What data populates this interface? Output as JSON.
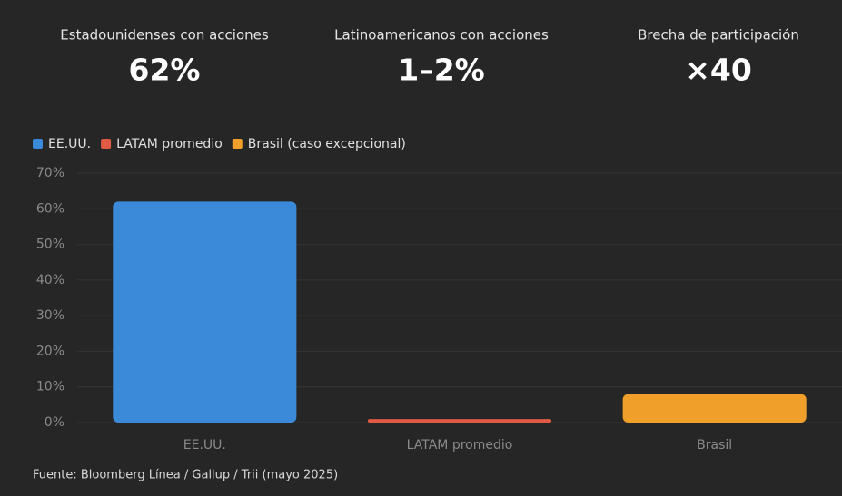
{
  "stats": [
    {
      "label": "Estadounidenses con acciones",
      "value": "62%"
    },
    {
      "label": "Latinoamericanos con acciones",
      "value": "1–2%"
    },
    {
      "label": "Brecha de participación",
      "value": "×40"
    }
  ],
  "chart_data": {
    "type": "bar",
    "categories": [
      "EE.UU.",
      "LATAM promedio",
      "Brasil"
    ],
    "series": [
      {
        "name": "EE.UU.",
        "color": "#3b8ad9",
        "values": [
          62,
          null,
          null
        ]
      },
      {
        "name": "LATAM promedio",
        "color": "#e05a44",
        "values": [
          null,
          1,
          null
        ]
      },
      {
        "name": "Brasil (caso excepcional)",
        "color": "#f0a02a",
        "values": [
          null,
          null,
          8
        ]
      }
    ],
    "ylim": [
      0,
      70
    ],
    "yticks": [
      {
        "value": 0,
        "label": "0%"
      },
      {
        "value": 10,
        "label": "10%"
      },
      {
        "value": 20,
        "label": "20%"
      },
      {
        "value": 30,
        "label": "30%"
      },
      {
        "value": 40,
        "label": "40%"
      },
      {
        "value": 50,
        "label": "50%"
      },
      {
        "value": 60,
        "label": "60%"
      },
      {
        "value": 70,
        "label": "70%"
      }
    ],
    "grid": true,
    "source": "Fuente: Bloomberg Línea / Gallup / Trii (mayo 2025)"
  }
}
